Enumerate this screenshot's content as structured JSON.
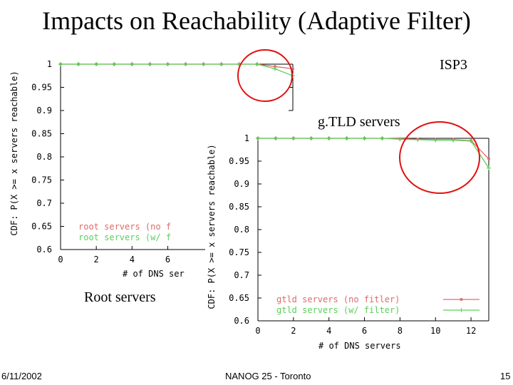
{
  "slide": {
    "title": "Impacts on Reachability (Adaptive Filter)",
    "label_isp": "ISP3",
    "label_gtld": "g.TLD servers",
    "label_root": "Root servers",
    "footer_date": "6/11/2002",
    "footer_event": "NANOG 25 - Toronto",
    "footer_page": "15"
  },
  "chart_data": [
    {
      "type": "line",
      "ylabel": "CDF: P(X >= x servers reachable)",
      "xlabel": "# of DNS ser",
      "xlim": [
        0,
        13
      ],
      "ylim": [
        0.6,
        1.0
      ],
      "xticks": [
        "0",
        "2",
        "4",
        "6"
      ],
      "yticks": [
        "1",
        "0.95",
        "0.9",
        "0.85",
        "0.8",
        "0.75",
        "0.7",
        "0.65",
        "0.6"
      ],
      "legend_position": "bottom-right",
      "series": [
        {
          "name": "root servers (no f",
          "color": "#e06a6a",
          "x": [
            0,
            1,
            2,
            3,
            4,
            5,
            6,
            7,
            8,
            9,
            10,
            11,
            12,
            13
          ],
          "y": [
            1,
            1,
            1,
            1,
            1,
            1,
            1,
            1,
            1,
            1,
            1,
            1,
            0.995,
            0.99
          ]
        },
        {
          "name": "root servers (w/ f",
          "color": "#5ad05a",
          "x": [
            0,
            1,
            2,
            3,
            4,
            5,
            6,
            7,
            8,
            9,
            10,
            11,
            12,
            13
          ],
          "y": [
            1,
            1,
            1,
            1,
            1,
            1,
            1,
            1,
            1,
            1,
            1,
            1,
            0.99,
            0.975
          ]
        }
      ]
    },
    {
      "type": "line",
      "ylabel": "CDF: P(X >= x servers reachable)",
      "xlabel": "# of DNS servers",
      "xlim": [
        0,
        13
      ],
      "ylim": [
        0.6,
        1.0
      ],
      "xticks": [
        "0",
        "2",
        "4",
        "6",
        "8",
        "10",
        "12"
      ],
      "yticks": [
        "1",
        "0.95",
        "0.9",
        "0.85",
        "0.8",
        "0.75",
        "0.7",
        "0.65",
        "0.6"
      ],
      "legend_position": "bottom-right",
      "series": [
        {
          "name": "gtld servers (no fitler)",
          "color": "#e06a6a",
          "x": [
            0,
            1,
            2,
            3,
            4,
            5,
            6,
            7,
            8,
            9,
            10,
            11,
            12,
            13
          ],
          "y": [
            1,
            1,
            1,
            1,
            1,
            1,
            1,
            1,
            0.999,
            0.998,
            0.997,
            0.997,
            0.995,
            0.955
          ]
        },
        {
          "name": "gtld servers (w/ filter)",
          "color": "#5ad05a",
          "x": [
            0,
            1,
            2,
            3,
            4,
            5,
            6,
            7,
            8,
            9,
            10,
            11,
            12,
            13
          ],
          "y": [
            1,
            1,
            1,
            1,
            1,
            1,
            1,
            1,
            0.998,
            0.997,
            0.996,
            0.996,
            0.994,
            0.935
          ]
        }
      ]
    }
  ]
}
